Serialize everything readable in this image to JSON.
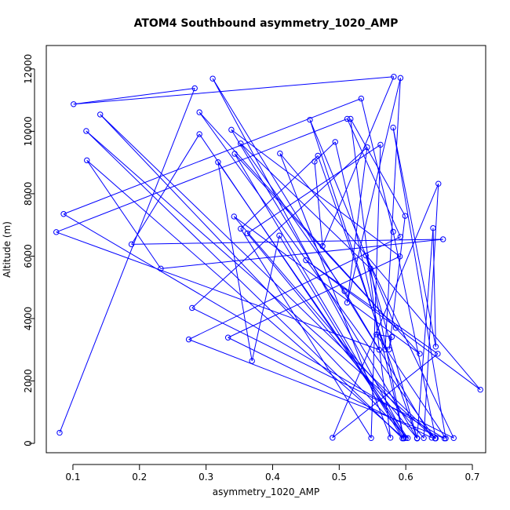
{
  "chart_data": {
    "type": "line",
    "title": "ATOM4 Southbound asymmetry_1020_AMP",
    "xlabel": "asymmetry_1020_AMP",
    "ylabel": "Altitude (m)",
    "xlim": [
      0.06,
      0.72
    ],
    "ylim": [
      -300,
      12750
    ],
    "x_ticks": [
      0.1,
      0.2,
      0.3,
      0.4,
      0.5,
      0.6,
      0.7
    ],
    "x_tick_labels": [
      "0.1",
      "0.2",
      "0.3",
      "0.4",
      "0.5",
      "0.6",
      "0.7"
    ],
    "y_ticks": [
      0,
      2000,
      4000,
      6000,
      8000,
      10000,
      12000
    ],
    "y_tick_labels": [
      "0",
      "2000",
      "4000",
      "6000",
      "8000",
      "10000",
      "12000"
    ],
    "grid": false,
    "series": [
      {
        "color": "#0000ff",
        "marker": "open-circle",
        "points": [
          [
            0.08,
            340
          ],
          [
            0.283,
            11380
          ],
          [
            0.101,
            10870
          ],
          [
            0.582,
            11750
          ],
          [
            0.475,
            6320
          ],
          [
            0.463,
            9030
          ],
          [
            0.494,
            9660
          ],
          [
            0.597,
            170
          ],
          [
            0.121,
            9070
          ],
          [
            0.232,
            5600
          ],
          [
            0.656,
            6540
          ],
          [
            0.188,
            6380
          ],
          [
            0.29,
            9910
          ],
          [
            0.6,
            170
          ],
          [
            0.31,
            11690
          ],
          [
            0.56,
            3000
          ],
          [
            0.075,
            6770
          ],
          [
            0.512,
            10400
          ],
          [
            0.592,
            6620
          ],
          [
            0.274,
            3330
          ],
          [
            0.658,
            160
          ],
          [
            0.086,
            7350
          ],
          [
            0.533,
            11050
          ],
          [
            0.581,
            6780
          ],
          [
            0.645,
            160
          ],
          [
            0.141,
            10540
          ],
          [
            0.603,
            170
          ],
          [
            0.318,
            9010
          ],
          [
            0.369,
            2640
          ],
          [
            0.41,
            6660
          ],
          [
            0.595,
            160
          ],
          [
            0.12,
            10010
          ],
          [
            0.644,
            160
          ],
          [
            0.29,
            10610
          ],
          [
            0.585,
            3700
          ],
          [
            0.456,
            10370
          ],
          [
            0.569,
            3010
          ],
          [
            0.592,
            11710
          ],
          [
            0.512,
            4510
          ],
          [
            0.542,
            9490
          ],
          [
            0.279,
            4340
          ],
          [
            0.672,
            170
          ],
          [
            0.54,
            6020
          ],
          [
            0.617,
            160
          ],
          [
            0.468,
            9220
          ],
          [
            0.352,
            6880
          ],
          [
            0.548,
            170
          ],
          [
            0.562,
            9570
          ],
          [
            0.362,
            6730
          ],
          [
            0.617,
            160
          ],
          [
            0.338,
            10050
          ],
          [
            0.591,
            5990
          ],
          [
            0.333,
            3390
          ],
          [
            0.639,
            180
          ],
          [
            0.508,
            4880
          ],
          [
            0.352,
            9610
          ],
          [
            0.547,
            5600
          ],
          [
            0.597,
            160
          ],
          [
            0.343,
            9280
          ],
          [
            0.621,
            2870
          ],
          [
            0.342,
            7270
          ],
          [
            0.627,
            170
          ],
          [
            0.649,
            8320
          ],
          [
            0.49,
            180
          ],
          [
            0.648,
            2870
          ],
          [
            0.45,
            5870
          ],
          [
            0.712,
            1720
          ],
          [
            0.411,
            9290
          ],
          [
            0.577,
            180
          ],
          [
            0.517,
            10400
          ],
          [
            0.599,
            7290
          ],
          [
            0.575,
            3010
          ],
          [
            0.579,
            3410
          ],
          [
            0.556,
            3490
          ],
          [
            0.66,
            160
          ],
          [
            0.581,
            10120
          ],
          [
            0.645,
            3100
          ],
          [
            0.641,
            6900
          ],
          [
            0.617,
            170
          ]
        ]
      }
    ]
  }
}
